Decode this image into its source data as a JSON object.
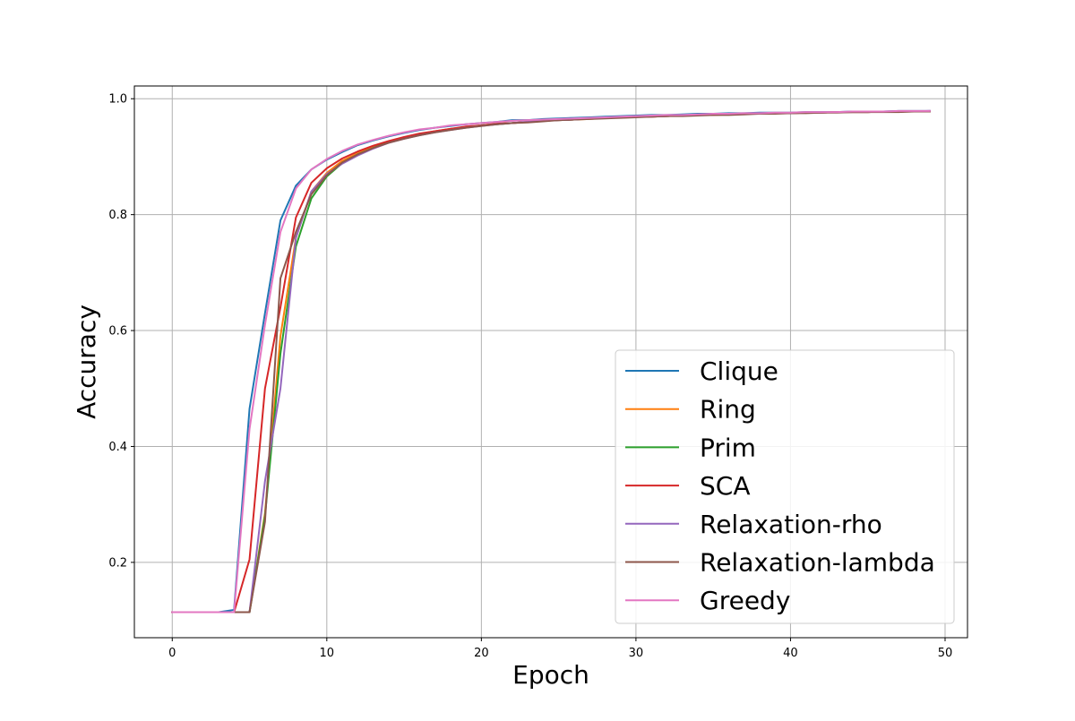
{
  "chart_data": {
    "type": "line",
    "title": "",
    "xlabel": "Epoch",
    "ylabel": "Accuracy",
    "xlim": [
      -2.45,
      51.45
    ],
    "ylim": [
      0.07,
      1.022
    ],
    "xticks": [
      0,
      10,
      20,
      30,
      40,
      50
    ],
    "yticks": [
      0.2,
      0.4,
      0.6,
      0.8,
      1.0
    ],
    "xtick_labels": [
      "0",
      "10",
      "20",
      "30",
      "40",
      "50"
    ],
    "ytick_labels": [
      "0.2",
      "0.4",
      "0.6",
      "0.8",
      "1.0"
    ],
    "grid": true,
    "legend_position": "lower-right",
    "x": [
      0,
      1,
      2,
      3,
      4,
      5,
      6,
      7,
      8,
      9,
      10,
      11,
      12,
      13,
      14,
      15,
      16,
      17,
      18,
      19,
      20,
      21,
      22,
      23,
      24,
      25,
      26,
      27,
      28,
      29,
      30,
      31,
      32,
      33,
      34,
      35,
      36,
      37,
      38,
      39,
      40,
      41,
      42,
      43,
      44,
      45,
      46,
      47,
      48,
      49
    ],
    "series": [
      {
        "name": "Clique",
        "color": "#1f77b4",
        "values": [
          0.114,
          0.114,
          0.114,
          0.114,
          0.118,
          0.465,
          0.63,
          0.79,
          0.85,
          0.878,
          0.895,
          0.908,
          0.92,
          0.928,
          0.935,
          0.941,
          0.946,
          0.95,
          0.953,
          0.956,
          0.958,
          0.96,
          0.963,
          0.963,
          0.965,
          0.966,
          0.967,
          0.968,
          0.969,
          0.97,
          0.971,
          0.972,
          0.972,
          0.973,
          0.974,
          0.974,
          0.975,
          0.975,
          0.976,
          0.976,
          0.976,
          0.977,
          0.977,
          0.977,
          0.978,
          0.978,
          0.978,
          0.979,
          0.979,
          0.979
        ]
      },
      {
        "name": "Ring",
        "color": "#ff7f0e",
        "values": [
          0.114,
          0.114,
          0.114,
          0.114,
          0.114,
          0.114,
          0.285,
          0.59,
          0.76,
          0.84,
          0.872,
          0.893,
          0.906,
          0.917,
          0.926,
          0.933,
          0.939,
          0.944,
          0.948,
          0.951,
          0.954,
          0.957,
          0.958,
          0.96,
          0.962,
          0.963,
          0.964,
          0.965,
          0.967,
          0.968,
          0.969,
          0.969,
          0.97,
          0.971,
          0.972,
          0.973,
          0.973,
          0.974,
          0.974,
          0.975,
          0.975,
          0.976,
          0.976,
          0.977,
          0.977,
          0.977,
          0.978,
          0.978,
          0.978,
          0.978
        ]
      },
      {
        "name": "Prim",
        "color": "#2ca02c",
        "values": [
          0.114,
          0.114,
          0.114,
          0.114,
          0.114,
          0.114,
          0.28,
          0.56,
          0.745,
          0.828,
          0.866,
          0.889,
          0.904,
          0.915,
          0.925,
          0.932,
          0.938,
          0.943,
          0.947,
          0.951,
          0.954,
          0.956,
          0.958,
          0.96,
          0.962,
          0.963,
          0.964,
          0.966,
          0.967,
          0.968,
          0.969,
          0.97,
          0.97,
          0.971,
          0.972,
          0.973,
          0.973,
          0.974,
          0.974,
          0.975,
          0.975,
          0.976,
          0.976,
          0.977,
          0.977,
          0.977,
          0.978,
          0.978,
          0.978,
          0.978
        ]
      },
      {
        "name": "SCA",
        "color": "#d62728",
        "values": [
          0.114,
          0.114,
          0.114,
          0.114,
          0.114,
          0.205,
          0.5,
          0.64,
          0.795,
          0.855,
          0.88,
          0.897,
          0.909,
          0.919,
          0.927,
          0.934,
          0.94,
          0.944,
          0.948,
          0.952,
          0.954,
          0.957,
          0.958,
          0.96,
          0.962,
          0.963,
          0.964,
          0.966,
          0.967,
          0.968,
          0.969,
          0.969,
          0.97,
          0.971,
          0.972,
          0.972,
          0.973,
          0.974,
          0.974,
          0.975,
          0.975,
          0.976,
          0.976,
          0.977,
          0.977,
          0.977,
          0.978,
          0.978,
          0.978,
          0.978
        ]
      },
      {
        "name": "Relaxation-rho",
        "color": "#9467bd",
        "values": [
          0.114,
          0.114,
          0.114,
          0.114,
          0.114,
          0.114,
          0.34,
          0.5,
          0.76,
          0.84,
          0.87,
          0.888,
          0.902,
          0.914,
          0.924,
          0.931,
          0.937,
          0.942,
          0.946,
          0.95,
          0.953,
          0.956,
          0.958,
          0.96,
          0.962,
          0.963,
          0.964,
          0.966,
          0.967,
          0.968,
          0.969,
          0.969,
          0.97,
          0.971,
          0.972,
          0.973,
          0.973,
          0.974,
          0.974,
          0.975,
          0.975,
          0.976,
          0.976,
          0.977,
          0.977,
          0.977,
          0.978,
          0.978,
          0.978,
          0.979
        ]
      },
      {
        "name": "Relaxation-lambda",
        "color": "#8c564b",
        "values": [
          0.114,
          0.114,
          0.114,
          0.114,
          0.114,
          0.114,
          0.27,
          0.69,
          0.77,
          0.835,
          0.868,
          0.89,
          0.904,
          0.915,
          0.924,
          0.931,
          0.937,
          0.942,
          0.946,
          0.95,
          0.953,
          0.956,
          0.958,
          0.959,
          0.961,
          0.963,
          0.964,
          0.965,
          0.966,
          0.967,
          0.968,
          0.969,
          0.97,
          0.97,
          0.971,
          0.972,
          0.972,
          0.973,
          0.974,
          0.974,
          0.975,
          0.975,
          0.976,
          0.976,
          0.977,
          0.977,
          0.977,
          0.977,
          0.978,
          0.978
        ]
      },
      {
        "name": "Greedy",
        "color": "#e377c2",
        "values": [
          0.114,
          0.114,
          0.114,
          0.114,
          0.114,
          0.43,
          0.61,
          0.77,
          0.845,
          0.878,
          0.896,
          0.91,
          0.921,
          0.929,
          0.936,
          0.942,
          0.947,
          0.95,
          0.954,
          0.956,
          0.958,
          0.96,
          0.962,
          0.963,
          0.964,
          0.965,
          0.966,
          0.967,
          0.968,
          0.969,
          0.97,
          0.971,
          0.972,
          0.972,
          0.973,
          0.974,
          0.974,
          0.975,
          0.975,
          0.976,
          0.976,
          0.977,
          0.977,
          0.977,
          0.978,
          0.978,
          0.978,
          0.979,
          0.979,
          0.979
        ]
      }
    ]
  }
}
